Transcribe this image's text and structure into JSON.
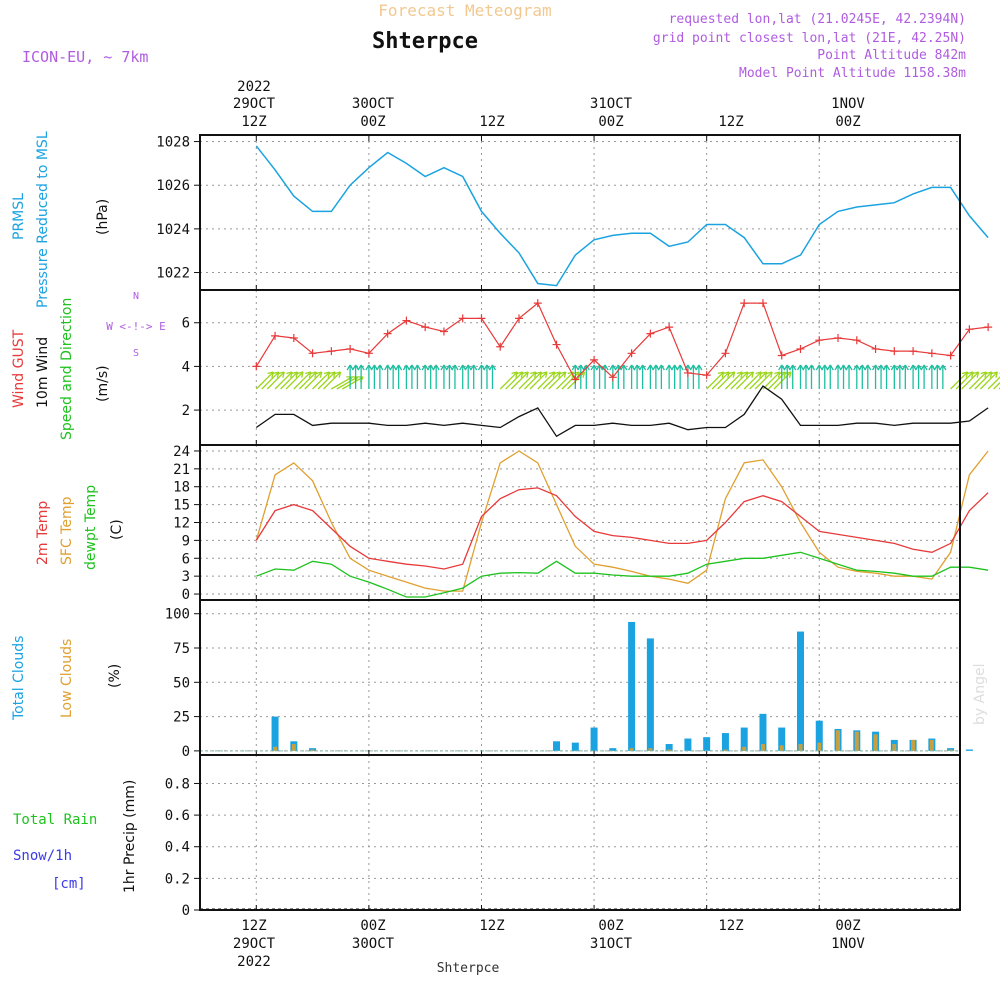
{
  "header": {
    "title": "Forecast Meteogram",
    "location": "Shterpce",
    "model": "ICON-EU, ~ 7km",
    "requested": "requested lon,lat (21.0245E, 42.2394N)",
    "grid_point": "grid point closest lon,lat (21E, 42.25N)",
    "point_altitude": "Point Altitude 842m",
    "model_altitude": "Model Point Altitude 1158.38m",
    "footer_location": "Shterpce",
    "credit": "by Angel"
  },
  "time_axis": {
    "top": [
      {
        "line1": "2022",
        "line2": "29OCT",
        "line3": "12Z"
      },
      {
        "line1": "",
        "line2": "30OCT",
        "line3": "00Z"
      },
      {
        "line1": "",
        "line2": "",
        "line3": "12Z"
      },
      {
        "line1": "",
        "line2": "31OCT",
        "line3": "00Z"
      },
      {
        "line1": "",
        "line2": "",
        "line3": "12Z"
      },
      {
        "line1": "",
        "line2": "1NOV",
        "line3": "00Z"
      }
    ],
    "bottom": [
      {
        "line1": "12Z",
        "line2": "29OCT",
        "line3": "2022"
      },
      {
        "line1": "00Z",
        "line2": "30OCT",
        "line3": ""
      },
      {
        "line1": "12Z",
        "line2": "",
        "line3": ""
      },
      {
        "line1": "00Z",
        "line2": "31OCT",
        "line3": ""
      },
      {
        "line1": "12Z",
        "line2": "",
        "line3": ""
      },
      {
        "line1": "00Z",
        "line2": "1NOV",
        "line3": ""
      }
    ]
  },
  "panel_labels": {
    "pressure": {
      "l1": "PRMSL",
      "l2": "Pressure Reduced to MSL",
      "unit": "(hPa)"
    },
    "wind": {
      "l1": "Wind GUST",
      "l2": "10m Wind",
      "l3": "Speed and Direction",
      "unit": "(m/s)",
      "compass_n": "N",
      "compass_s": "S",
      "compass_we": "W <-!-> E"
    },
    "temp": {
      "l1": "2m Temp",
      "l2": "SFC Temp",
      "l3": "dewpt Temp",
      "unit": "(C)"
    },
    "clouds": {
      "l1": "Total Clouds",
      "l2": "Low Clouds",
      "unit": "(%)"
    },
    "precip": {
      "l1": "Total  Rain",
      "l2": "Snow/1h",
      "l3": "[cm]",
      "unit": "1hr Precip (mm)"
    }
  },
  "colors": {
    "pressure": "#1aa3e0",
    "gust": "#e83a3a",
    "wind": "#111111",
    "temp2m": "#e83a3a",
    "sfc": "#e0a030",
    "dewpt": "#1fc21f",
    "total_clouds": "#1aa3e0",
    "low_clouds": "#c8a040",
    "rain": "#1fc21f",
    "snow": "#3a3ae8",
    "meta": "#b05ce0",
    "title": "#f2c890"
  },
  "chart_data": [
    {
      "type": "line",
      "title": "PRMSL Pressure Reduced to MSL",
      "ylabel": "(hPa)",
      "x_hours": [
        0,
        2,
        4,
        6,
        8,
        10,
        12,
        14,
        16,
        18,
        20,
        22,
        24,
        26,
        28,
        30,
        32,
        34,
        36,
        38,
        40,
        42,
        44,
        46,
        48,
        50,
        52,
        54,
        56,
        58,
        60,
        62,
        64,
        66,
        68,
        70,
        72,
        74,
        76,
        78
      ],
      "ylim": [
        1021.2,
        1028.3
      ],
      "yticks": [
        1022,
        1024,
        1026,
        1028
      ],
      "series": [
        {
          "name": "PRMSL",
          "values": [
            1027.8,
            1026.7,
            1025.5,
            1024.8,
            1024.8,
            1026.0,
            1026.8,
            1027.5,
            1027.0,
            1026.4,
            1026.8,
            1026.4,
            1024.8,
            1023.8,
            1022.9,
            1021.5,
            1021.4,
            1022.8,
            1023.5,
            1023.7,
            1023.8,
            1023.8,
            1023.2,
            1023.4,
            1024.2,
            1024.2,
            1023.6,
            1022.4,
            1022.4,
            1022.8,
            1024.2,
            1024.8,
            1025.0,
            1025.1,
            1025.2,
            1025.6,
            1025.9,
            1025.9,
            1024.6,
            1023.6
          ]
        }
      ]
    },
    {
      "type": "line",
      "title": "Wind GUST / 10m Wind Speed and Direction",
      "ylabel": "(m/s)",
      "x_hours": [
        0,
        2,
        4,
        6,
        8,
        10,
        12,
        14,
        16,
        18,
        20,
        22,
        24,
        26,
        28,
        30,
        32,
        34,
        36,
        38,
        40,
        42,
        44,
        46,
        48,
        50,
        52,
        54,
        56,
        58,
        60,
        62,
        64,
        66,
        68,
        70,
        72,
        74,
        76,
        78
      ],
      "ylim": [
        0.4,
        7.5
      ],
      "yticks": [
        2,
        4,
        6
      ],
      "series": [
        {
          "name": "Wind GUST",
          "values": [
            4.0,
            5.4,
            5.3,
            4.6,
            4.7,
            4.8,
            4.6,
            5.5,
            6.1,
            5.8,
            5.6,
            6.2,
            6.2,
            4.9,
            6.2,
            6.9,
            5.0,
            3.4,
            4.3,
            3.5,
            4.6,
            5.5,
            5.8,
            3.7,
            3.6,
            4.6,
            6.9,
            6.9,
            4.5,
            4.8,
            5.2,
            5.3,
            5.2,
            4.8,
            4.7,
            4.7,
            4.6,
            4.5,
            5.7,
            5.8
          ]
        },
        {
          "name": "10m Wind",
          "values": [
            1.2,
            1.8,
            1.8,
            1.3,
            1.4,
            1.4,
            1.4,
            1.3,
            1.3,
            1.4,
            1.3,
            1.4,
            1.3,
            1.2,
            1.7,
            2.1,
            0.8,
            1.3,
            1.3,
            1.4,
            1.3,
            1.3,
            1.4,
            1.1,
            1.2,
            1.2,
            1.8,
            3.1,
            2.5,
            1.3,
            1.3,
            1.3,
            1.4,
            1.4,
            1.3,
            1.4,
            1.4,
            1.4,
            1.5,
            2.1
          ]
        }
      ],
      "wind_dir_deg": [
        45,
        45,
        45,
        45,
        60,
        0,
        0,
        0,
        0,
        0,
        0,
        0,
        0,
        45,
        45,
        45,
        45,
        0,
        0,
        0,
        0,
        0,
        0,
        0,
        45,
        45,
        45,
        45,
        0,
        0,
        0,
        0,
        0,
        0,
        0,
        0,
        0,
        45,
        45,
        45
      ]
    },
    {
      "type": "line",
      "title": "2m Temp / SFC Temp / dewpt Temp",
      "ylabel": "(C)",
      "x_hours": [
        0,
        2,
        4,
        6,
        8,
        10,
        12,
        14,
        16,
        18,
        20,
        22,
        24,
        26,
        28,
        30,
        32,
        34,
        36,
        38,
        40,
        42,
        44,
        46,
        48,
        50,
        52,
        54,
        56,
        58,
        60,
        62,
        64,
        66,
        68,
        70,
        72,
        74,
        76,
        78
      ],
      "ylim": [
        -1,
        25
      ],
      "yticks": [
        0,
        3,
        6,
        9,
        12,
        15,
        18,
        21,
        24
      ],
      "series": [
        {
          "name": "2m Temp",
          "values": [
            9,
            14,
            15,
            14,
            11,
            8,
            6,
            5.5,
            5,
            4.7,
            4.2,
            5,
            13,
            16,
            17.5,
            17.8,
            16.5,
            13,
            10.5,
            9.8,
            9.5,
            9,
            8.5,
            8.5,
            9,
            12,
            15.5,
            16.5,
            15.5,
            13,
            10.5,
            10,
            9.5,
            9,
            8.5,
            7.5,
            7,
            8.5,
            14,
            17
          ]
        },
        {
          "name": "SFC Temp",
          "values": [
            9,
            20,
            22,
            19,
            12,
            6,
            4,
            3,
            2,
            1,
            0.5,
            0.5,
            12,
            22,
            24,
            22,
            15,
            8,
            5,
            4.5,
            3.8,
            3,
            2.5,
            1.8,
            4,
            16,
            22,
            22.5,
            18,
            12,
            7,
            4.5,
            3.8,
            3.5,
            3,
            3,
            2.5,
            7,
            20,
            24
          ]
        },
        {
          "name": "dewpt Temp",
          "values": [
            3,
            4.2,
            4,
            5.5,
            5,
            3,
            2,
            0.8,
            -0.5,
            -0.5,
            0.2,
            1,
            3,
            3.5,
            3.6,
            3.5,
            5.5,
            3.5,
            3.5,
            3.2,
            3,
            3,
            3,
            3.5,
            5,
            5.5,
            6,
            6,
            6.5,
            7,
            6,
            5,
            4,
            3.8,
            3.5,
            3,
            3,
            4.5,
            4.5,
            4
          ]
        }
      ]
    },
    {
      "type": "bar",
      "title": "Total Clouds / Low Clouds",
      "ylabel": "(%)",
      "x_hours": [
        0,
        2,
        4,
        6,
        8,
        10,
        12,
        14,
        16,
        18,
        20,
        22,
        24,
        26,
        28,
        30,
        32,
        34,
        36,
        38,
        40,
        42,
        44,
        46,
        48,
        50,
        52,
        54,
        56,
        58,
        60,
        62,
        64,
        66,
        68,
        70,
        72,
        74,
        76,
        78
      ],
      "ylim": [
        -3,
        110
      ],
      "yticks": [
        0,
        25,
        50,
        75,
        100
      ],
      "series": [
        {
          "name": "Total Clouds",
          "values": [
            0,
            25,
            7,
            2,
            0,
            0,
            0,
            0,
            0,
            0,
            0,
            0,
            0,
            0,
            0,
            0,
            7,
            6,
            17,
            2,
            94,
            82,
            5,
            9,
            10,
            13,
            17,
            27,
            17,
            87,
            22,
            16,
            15,
            14,
            8,
            8,
            9,
            2,
            1,
            0
          ]
        },
        {
          "name": "Low Clouds",
          "values": [
            0,
            3,
            5,
            1,
            0,
            0,
            0,
            0,
            0,
            0,
            0,
            0,
            0,
            0,
            0,
            0,
            0,
            0,
            0,
            0,
            2,
            2,
            1,
            0,
            0,
            1,
            3,
            5,
            4,
            5,
            6,
            15,
            14,
            12,
            5,
            8,
            8,
            1,
            0,
            0
          ]
        }
      ]
    },
    {
      "type": "bar",
      "title": "1hr Precip",
      "ylabel": "1hr Precip (mm)",
      "ylim": [
        0,
        0.98
      ],
      "yticks": [
        0,
        0.2,
        0.4,
        0.6,
        0.8
      ],
      "series": [
        {
          "name": "Total Rain",
          "values": []
        }
      ]
    }
  ]
}
